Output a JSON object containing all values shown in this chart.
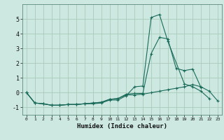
{
  "xlabel": "Humidex (Indice chaleur)",
  "bg_color": "#cce8e0",
  "grid_color": "#aaccbb",
  "line_color": "#1a6b5a",
  "xlim": [
    -0.5,
    23.5
  ],
  "ylim": [
    -1.5,
    6.0
  ],
  "xticks": [
    0,
    1,
    2,
    3,
    4,
    5,
    6,
    7,
    8,
    9,
    10,
    11,
    12,
    13,
    14,
    15,
    16,
    17,
    18,
    19,
    20,
    21,
    22,
    23
  ],
  "yticks": [
    -1,
    0,
    1,
    2,
    3,
    4,
    5
  ],
  "x": [
    0,
    1,
    2,
    3,
    4,
    5,
    6,
    7,
    8,
    9,
    10,
    11,
    12,
    13,
    14,
    15,
    16,
    17,
    18,
    19,
    20,
    21,
    22,
    23
  ],
  "line1": [
    0.0,
    -0.7,
    -0.75,
    -0.85,
    -0.85,
    -0.8,
    -0.8,
    -0.75,
    -0.75,
    -0.7,
    -0.5,
    -0.5,
    -0.2,
    0.4,
    0.45,
    5.1,
    5.3,
    3.5,
    null,
    0.6,
    0.4,
    0.1,
    -0.4,
    null
  ],
  "line2": [
    0.0,
    -0.7,
    -0.75,
    -0.85,
    -0.85,
    -0.8,
    -0.8,
    -0.75,
    -0.7,
    -0.65,
    -0.45,
    -0.4,
    -0.1,
    -0.05,
    -0.05,
    2.65,
    3.75,
    3.65,
    1.65,
    1.5,
    1.6,
    0.35,
    null,
    null
  ],
  "line3": [
    0.0,
    -0.7,
    -0.75,
    -0.85,
    -0.85,
    -0.8,
    -0.8,
    -0.75,
    -0.7,
    -0.65,
    -0.45,
    -0.4,
    -0.15,
    -0.15,
    -0.1,
    0.0,
    0.1,
    0.2,
    0.3,
    0.4,
    0.55,
    0.4,
    0.1,
    -0.55
  ]
}
